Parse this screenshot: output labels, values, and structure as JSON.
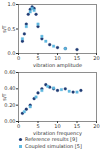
{
  "chart_data": [
    {
      "type": "scatter",
      "x_label": "vibration amplitude",
      "y_label": "s/T",
      "xlim": [
        0,
        20
      ],
      "xticks": [
        0,
        5,
        10,
        15,
        20
      ],
      "ylim": [
        0,
        1
      ],
      "yticks": [
        0,
        0.5,
        1
      ],
      "series": [
        {
          "name": "Reference results [9]",
          "color": "#1f3b73",
          "marker": "circle",
          "x": [
            1,
            1.5,
            2,
            2.5,
            3,
            3.5,
            4,
            4.5,
            5,
            6,
            8,
            10,
            12,
            15
          ],
          "values": [
            0.25,
            0.4,
            0.6,
            0.8,
            0.9,
            0.95,
            0.92,
            0.8,
            0.55,
            0.3,
            0.18,
            0.12,
            0.1,
            0.08
          ]
        },
        {
          "name": "Coupled simulation [5]",
          "color": "#5fb8e0",
          "marker": "square",
          "x": [
            1,
            2,
            3,
            3.5,
            4,
            5,
            6,
            7,
            9,
            12
          ],
          "values": [
            0.3,
            0.55,
            0.85,
            0.92,
            0.88,
            0.6,
            0.35,
            0.25,
            0.15,
            0.1
          ]
        }
      ]
    },
    {
      "type": "scatter",
      "x_label": "vibration frequency",
      "y_label": "s/T",
      "xlim": [
        0,
        20
      ],
      "xticks": [
        0,
        5,
        10,
        15,
        20
      ],
      "ylim": [
        0,
        0.6
      ],
      "yticks": [
        0,
        0.2,
        0.4,
        0.6
      ],
      "legend": "bottom",
      "series": [
        {
          "name": "Reference results [9]",
          "color": "#1f3b73",
          "marker": "circle",
          "x": [
            1,
            2,
            3,
            4,
            5,
            6,
            7,
            8,
            9,
            10,
            12,
            14,
            16
          ],
          "values": [
            0.1,
            0.15,
            0.2,
            0.28,
            0.35,
            0.4,
            0.45,
            0.42,
            0.4,
            0.38,
            0.4,
            0.36,
            0.38
          ]
        },
        {
          "name": "Coupled simulation [5]",
          "color": "#5fb8e0",
          "marker": "square",
          "x": [
            1.5,
            3,
            4.5,
            6,
            7.5,
            9,
            11,
            13,
            15
          ],
          "values": [
            0.12,
            0.18,
            0.3,
            0.38,
            0.43,
            0.41,
            0.39,
            0.37,
            0.36
          ]
        }
      ]
    }
  ]
}
